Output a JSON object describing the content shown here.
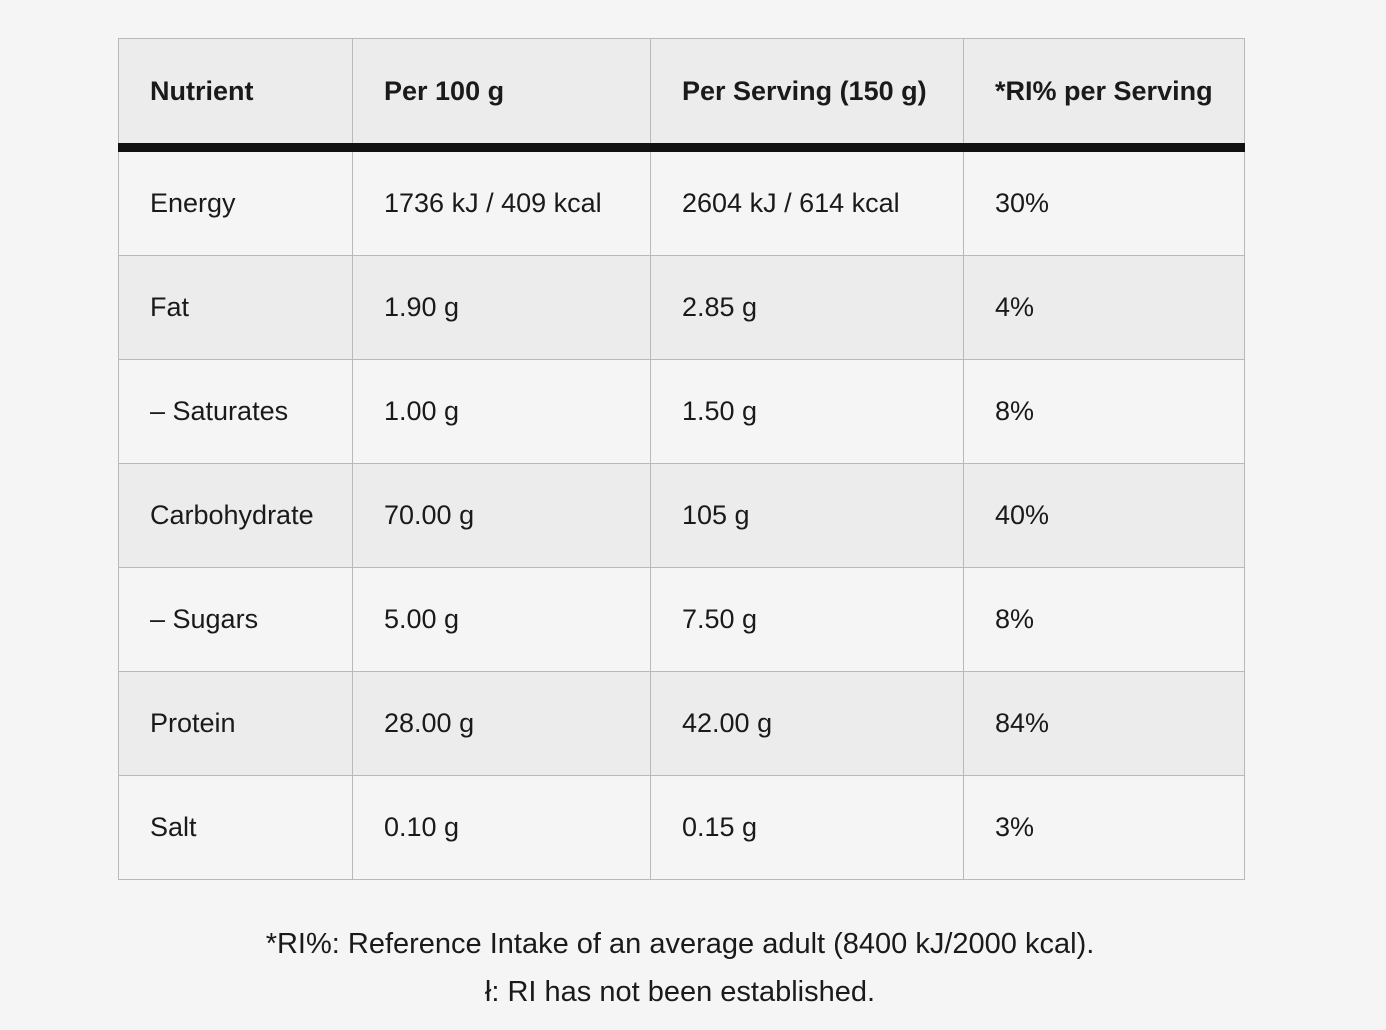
{
  "table": {
    "headers": [
      "Nutrient",
      "Per 100 g",
      "Per Serving (150 g)",
      "*RI% per Serving"
    ],
    "rows": [
      [
        "Energy",
        "1736 kJ / 409 kcal",
        "2604 kJ / 614 kcal",
        "30%"
      ],
      [
        "Fat",
        "1.90 g",
        "2.85 g",
        "4%"
      ],
      [
        "– Saturates",
        "1.00 g",
        "1.50 g",
        "8%"
      ],
      [
        "Carbohydrate",
        "70.00 g",
        "105 g",
        "40%"
      ],
      [
        "– Sugars",
        "5.00 g",
        "7.50 g",
        "8%"
      ],
      [
        "Protein",
        "28.00 g",
        "42.00 g",
        "84%"
      ],
      [
        "Salt",
        "0.10 g",
        "0.15 g",
        "3%"
      ]
    ]
  },
  "footnotes": {
    "ri_definition": "*RI%: Reference Intake of an average adult (8400 kJ/2000 kcal).",
    "ri_not_established": "ł: RI has not been established."
  }
}
